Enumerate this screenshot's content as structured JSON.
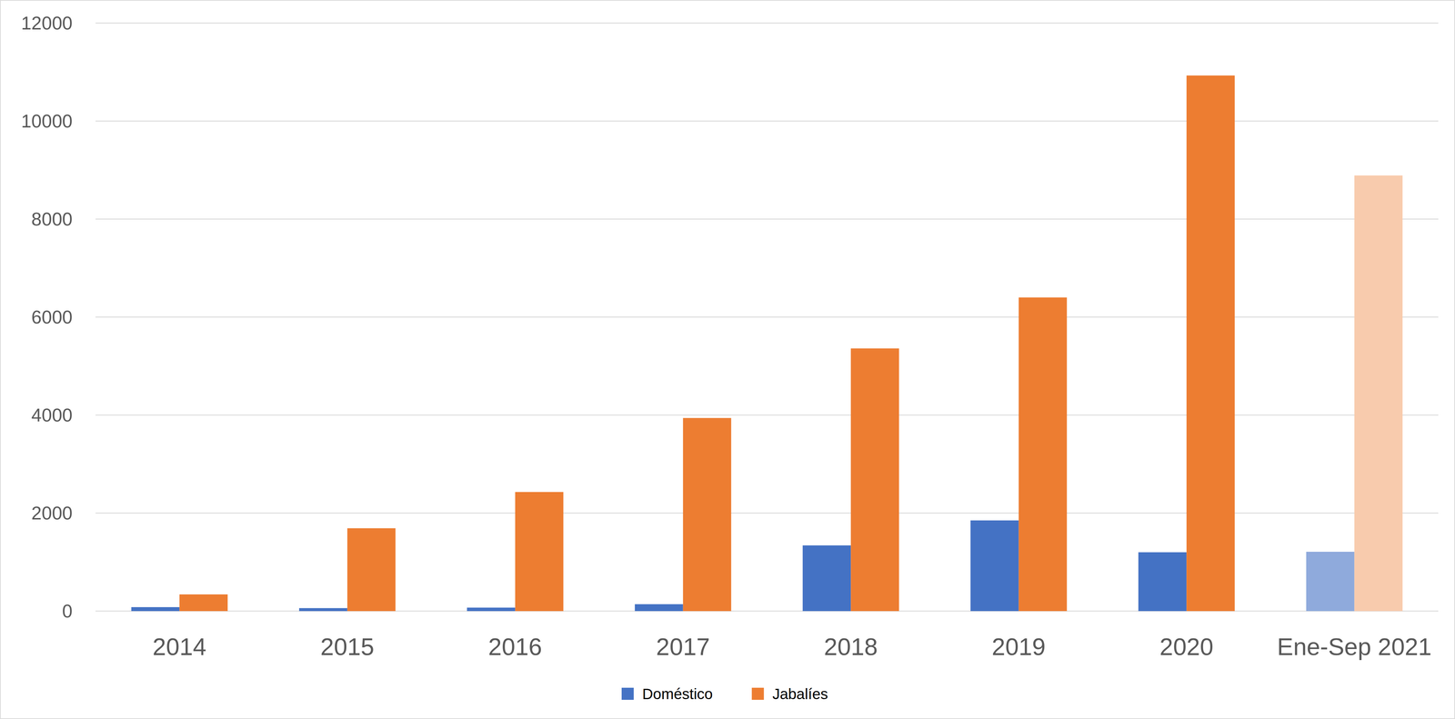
{
  "chart_data": {
    "type": "bar",
    "categories": [
      "2014",
      "2015",
      "2016",
      "2017",
      "2018",
      "2019",
      "2020",
      "Ene-Sep 2021"
    ],
    "series": [
      {
        "name": "Doméstico",
        "color": "#4472c4",
        "colors": [
          "#4472c4",
          "#4472c4",
          "#4472c4",
          "#4472c4",
          "#4472c4",
          "#4472c4",
          "#4472c4",
          "#8faadc"
        ],
        "values": [
          80,
          60,
          70,
          140,
          1340,
          1850,
          1200,
          1210
        ]
      },
      {
        "name": "Jabalíes",
        "color": "#ed7d31",
        "colors": [
          "#ed7d31",
          "#ed7d31",
          "#ed7d31",
          "#ed7d31",
          "#ed7d31",
          "#ed7d31",
          "#ed7d31",
          "#f8cbad"
        ],
        "values": [
          340,
          1690,
          2430,
          3940,
          5360,
          6400,
          10930,
          8890
        ]
      }
    ],
    "ylim": [
      0,
      12000
    ],
    "yticks": [
      0,
      2000,
      4000,
      6000,
      8000,
      10000,
      12000
    ],
    "grid": true,
    "legend": "bottom"
  }
}
